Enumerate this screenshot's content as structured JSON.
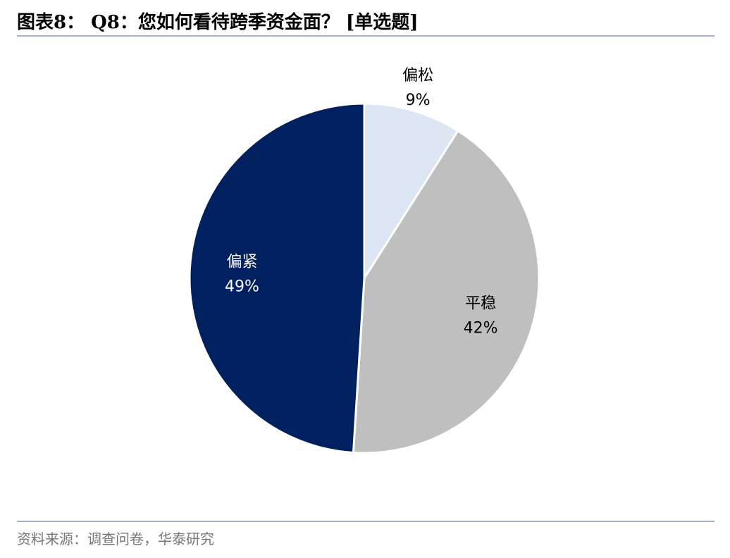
{
  "chart_data": {
    "type": "pie",
    "title": "图表8： Q8：您如何看待跨季资金面？   [单选题]",
    "categories": [
      "偏松",
      "平稳",
      "偏紧"
    ],
    "values": [
      9,
      42,
      49
    ],
    "value_labels": [
      "9%",
      "42%",
      "49%"
    ],
    "colors": [
      "#dce6f2",
      "#bfbfbf",
      "#002060"
    ],
    "source": "资料来源：调查问卷，华泰研究"
  }
}
